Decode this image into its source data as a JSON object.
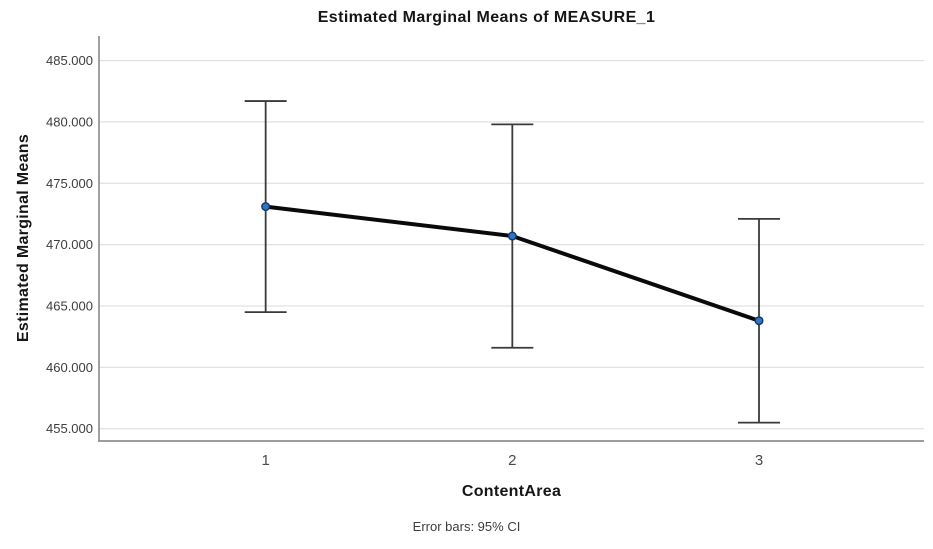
{
  "chart_data": {
    "type": "line",
    "title": "Estimated Marginal Means of MEASURE_1",
    "xlabel": "ContentArea",
    "ylabel": "Estimated Marginal Means",
    "caption": "Error bars: 95% CI",
    "categories": [
      "1",
      "2",
      "3"
    ],
    "series": [
      {
        "name": "Estimated Marginal Means",
        "values": [
          473.1,
          470.7,
          463.8
        ],
        "ci_low": [
          464.5,
          461.6,
          455.5
        ],
        "ci_high": [
          481.7,
          479.8,
          472.1
        ]
      }
    ],
    "y_ticks": [
      {
        "value": 455,
        "label": "455.000"
      },
      {
        "value": 460,
        "label": "460.000"
      },
      {
        "value": 465,
        "label": "465.000"
      },
      {
        "value": 470,
        "label": "470.000"
      },
      {
        "value": 475,
        "label": "475.000"
      },
      {
        "value": 480,
        "label": "480.000"
      },
      {
        "value": 485,
        "label": "485.000"
      }
    ],
    "ylim": [
      454,
      487
    ],
    "grid": true,
    "legend": "none",
    "error_bar_cap_half_width": 21,
    "colors": {
      "line": "#0a0a0a",
      "marker_fill": "#2e74c9",
      "marker_stroke": "#17365e",
      "error_bar": "#3a3a3a",
      "gridline": "#e0e0e0",
      "axis": "#8f8f8f",
      "tick_text": "#3d3d3d"
    }
  }
}
